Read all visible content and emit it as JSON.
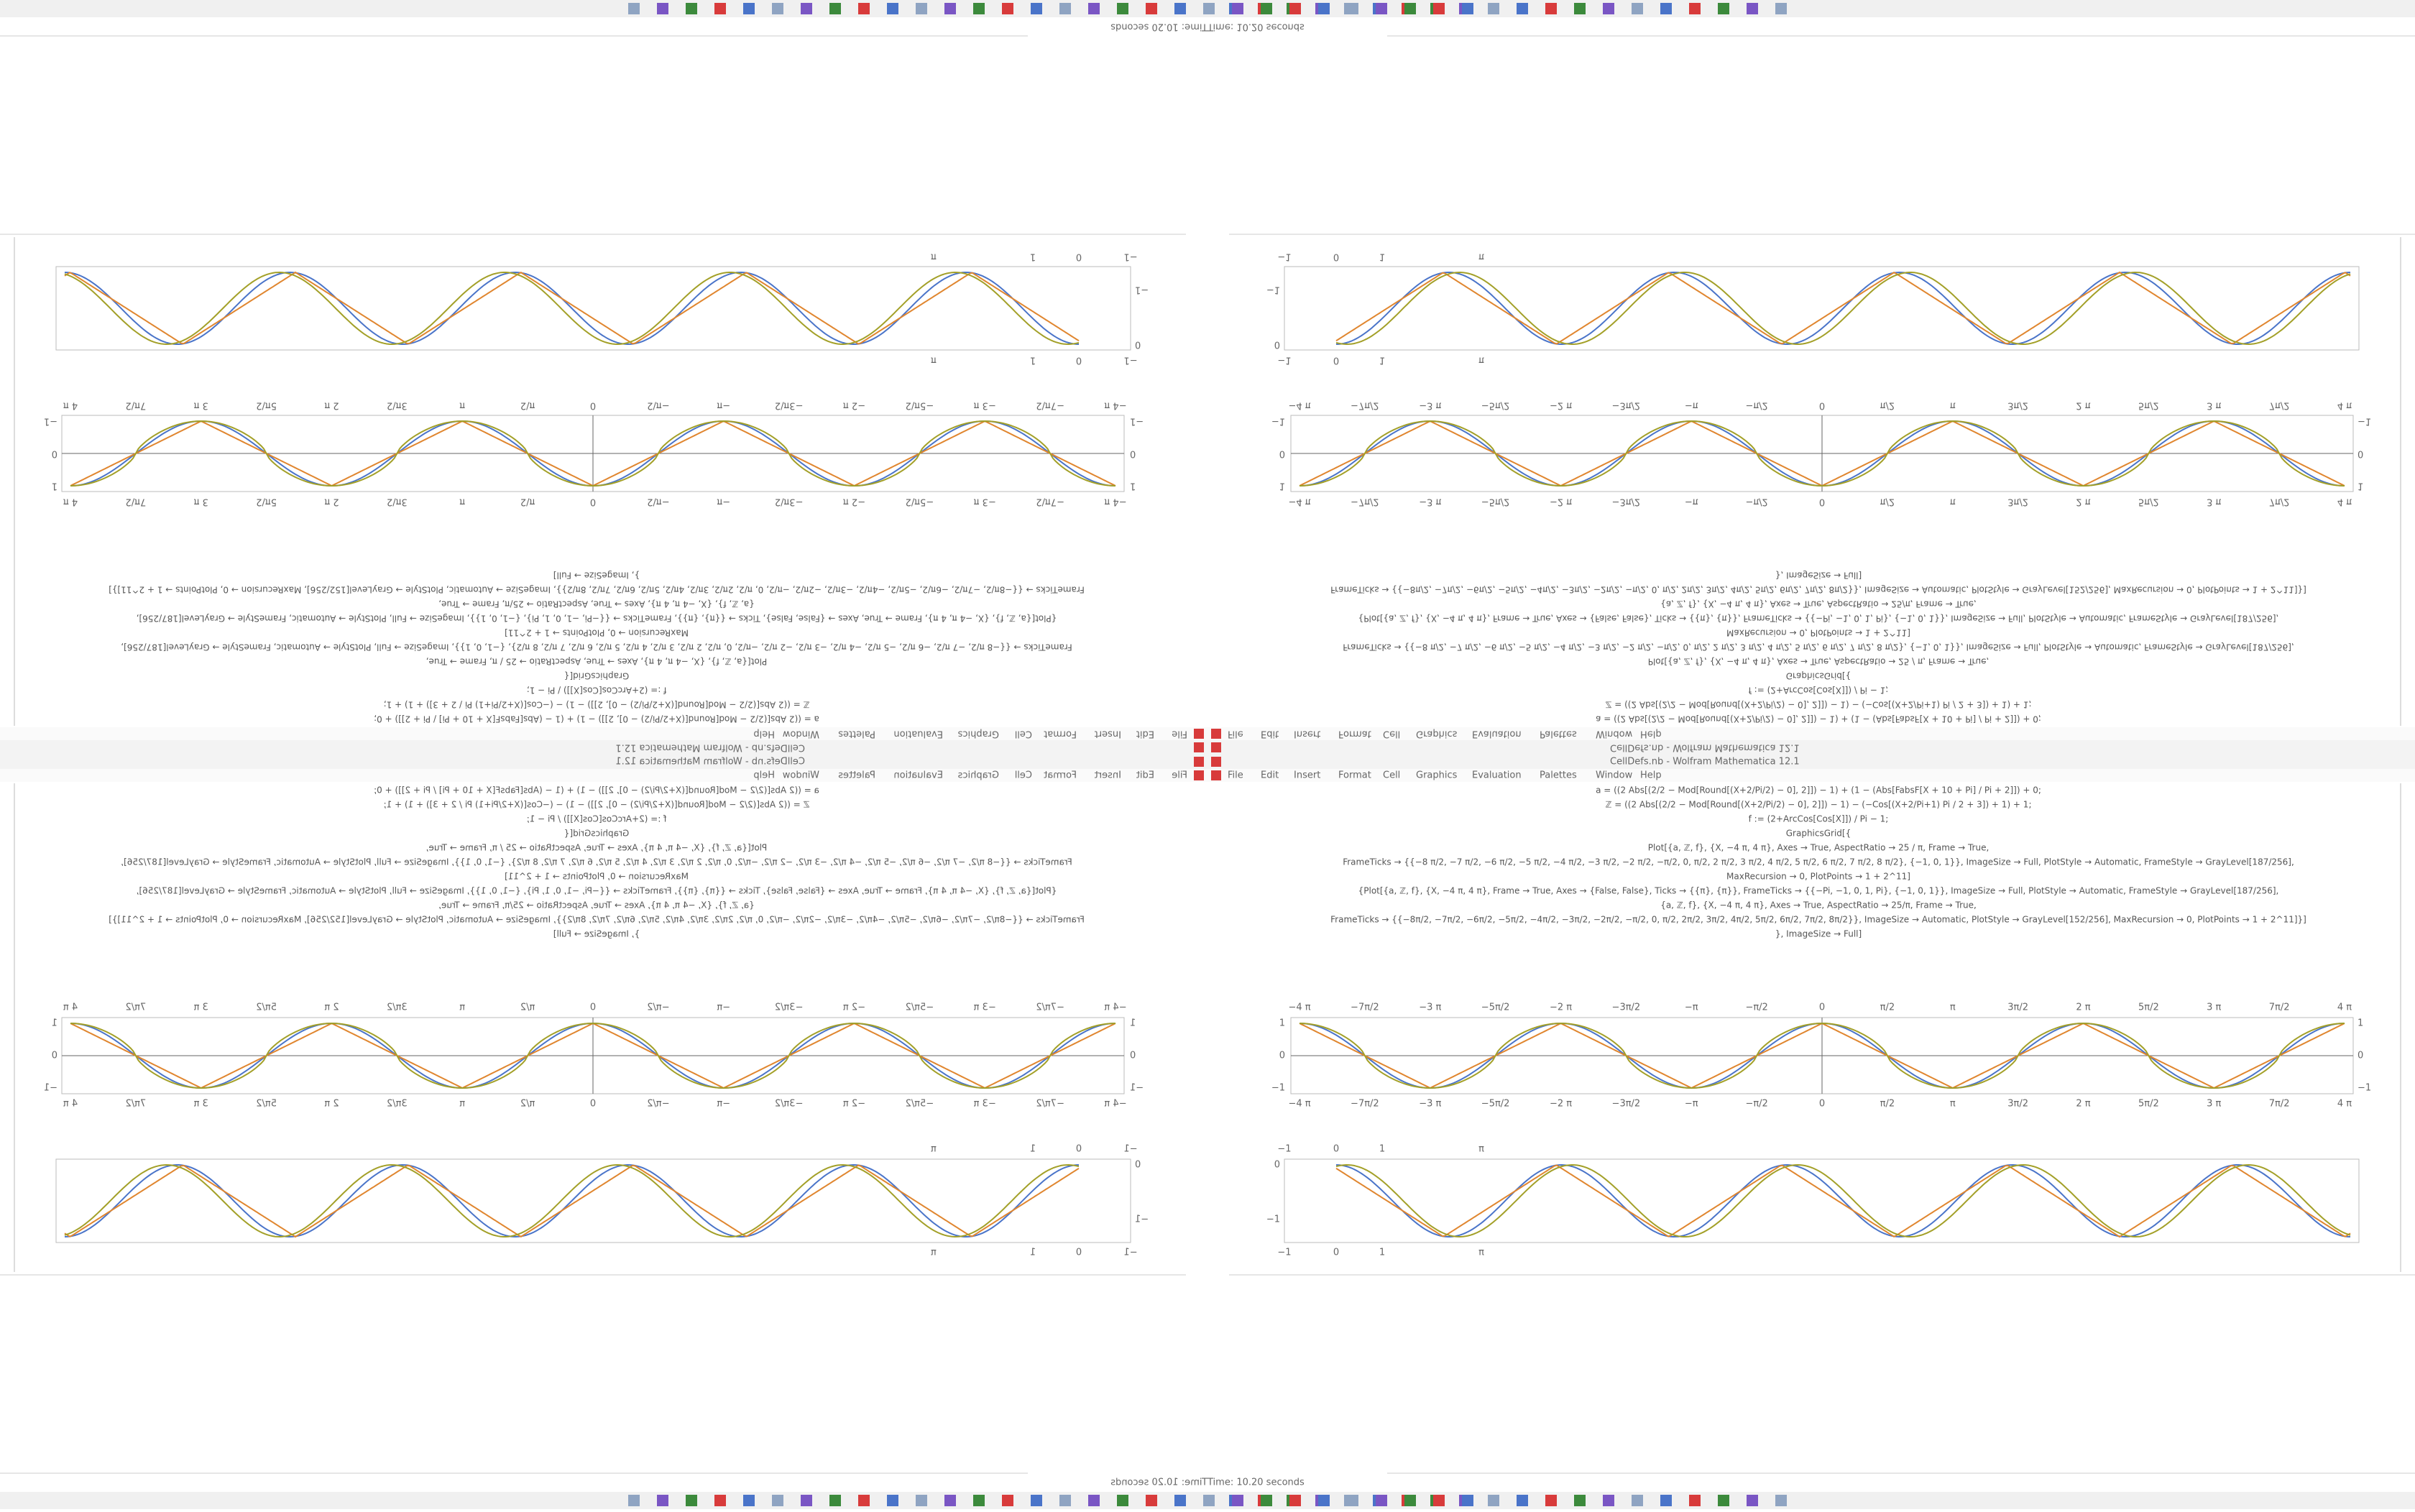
{
  "window": {
    "title": "CellDefs.nb - Wolfram Mathematica 12.1",
    "menu": [
      "File",
      "Edit",
      "Insert",
      "Format",
      "Cell",
      "Graphics",
      "Evaluation",
      "Palettes",
      "Window",
      "Help"
    ],
    "status": "Time: 10.20 seconds"
  },
  "code": [
    "a = ((2 Abs[(2/2 − Mod[Round[(X+2/Pi/2) − 0], 2]]) − 1) + (1 − (Abs[FabsF[X + 10 + Pi] / Pi + 2]]) + 0;",
    "ℤ = ((2 Abs[(2/2 − Mod[Round[(X+2/Pi/2) − 0], 2]]) − 1) − (−Cos[(X+2/Pi+1) Pi / 2 + 3]) + 1) + 1;",
    "f := (2+ArcCos[Cos[X]]) / Pi − 1;",
    "GraphicsGrid[{",
    "Plot[{a, ℤ, f}, {X, −4 π, 4 π}, Axes → True, AspectRatio → 25 / π, Frame → True,",
    "FrameTicks → {{−8 π/2, −7 π/2, −6 π/2, −5 π/2, −4 π/2, −3 π/2, −2 π/2, −π/2, 0, π/2, 2 π/2, 3 π/2, 4 π/2, 5 π/2, 6 π/2, 7 π/2, 8 π/2}, {−1, 0, 1}}, ImageSize → Full, PlotStyle → Automatic, FrameStyle → GrayLevel[187/256],",
    "MaxRecursion → 0, PlotPoints → 1 + 2^11]",
    "{Plot[{a, ℤ, f}, {X, −4 π, 4 π}, Frame → True, Axes → {False, False}, Ticks → {{π}, {π}}, FrameTicks → {{−Pi, −1, 0, 1, Pi}, {−1, 0, 1}}, ImageSize → Full, PlotStyle → Automatic, FrameStyle → GrayLevel[187/256],",
    "{a, ℤ, f}, {X, −4 π, 4 π}, Axes → True, AspectRatio → 25/π, Frame → True,",
    "FrameTicks → {{−8π/2, −7π/2, −6π/2, −5π/2, −4π/2, −3π/2, −2π/2, −π/2, 0, π/2, 2π/2, 3π/2, 4π/2, 5π/2, 6π/2, 7π/2, 8π/2}}, ImageSize → Automatic, PlotStyle → GrayLevel[152/256], MaxRecursion → 0, PlotPoints → 1 + 2^11]}]",
    "}, ImageSize → Full]"
  ],
  "plot1": {
    "xticks": [
      "−4 π",
      "−7π/2",
      "−3 π",
      "−5π/2",
      "−2 π",
      "−3π/2",
      "−π",
      "−π/2",
      "0",
      "π/2",
      "π",
      "3π/2",
      "2 π",
      "5π/2",
      "3 π",
      "7π/2",
      "4 π"
    ],
    "yticks": [
      "1",
      "0",
      "−1"
    ]
  },
  "plot2": {
    "xticks": [
      "−1",
      "0",
      "1",
      "π"
    ],
    "yticks": [
      "0",
      "−1"
    ]
  }
}
